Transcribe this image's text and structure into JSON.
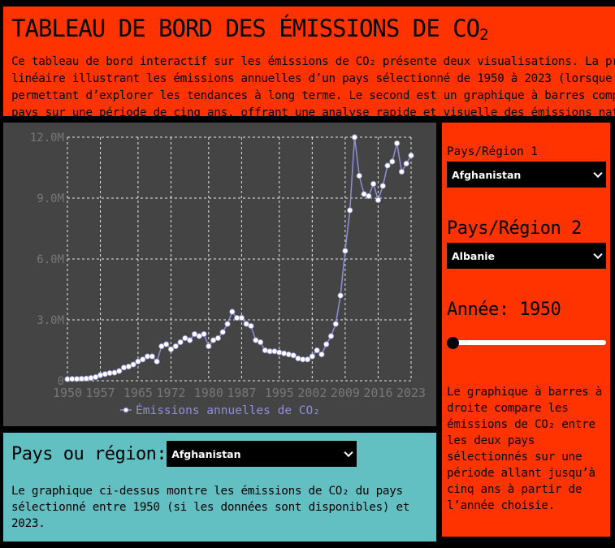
{
  "header": {
    "title_main": "TABLEAU DE BORD DES ÉMISSIONS DE CO",
    "title_sub": "2",
    "desc_lines": [
      "Ce tableau de bord interactif sur les émissions de CO₂ présente deux visualisations. La premi",
      "linéaire illustrant les émissions annuelles d’un pays sélectionné de 1950 à 2023 (lorsque les",
      "permettant d’explorer les tendances à long terme. Le second est un graphique à barres compara",
      "pays sur une période de cinq ans, offrant une analyse rapide et visuelle des émissions nation"
    ]
  },
  "info": {
    "label": "Pays ou région:",
    "selected": "Afghanistan",
    "text": "Le graphique ci-dessus montre les émissions de CO₂ du pays sélectionné entre 1950 (si les données sont disponibles) et 2023."
  },
  "side": {
    "label1": "Pays/Région 1",
    "country1": "Afghanistan",
    "label2": "Pays/Région 2",
    "country2": "Albanie",
    "year_label": "Année: 1950",
    "year_value": 1950,
    "year_range": [
      1950,
      2023
    ],
    "text": "Le graphique à barres à droite compare les émissions de CO₂ entre les deux pays sélectionnés sur une période allant jusqu’à cinq ans à partir de l’année choisie."
  },
  "colors": {
    "accent": "#ff3300",
    "info_bg": "#62c0c3",
    "chart_bg": "#444444",
    "line": "#8f8fd8",
    "marker": "#ffffff"
  },
  "chart_data": {
    "type": "line",
    "legend": "Émissions annuelles de CO₂",
    "legend_placement": "bottom-center",
    "grid": true,
    "xlim": [
      1950,
      2023
    ],
    "ylim": [
      0,
      12000000
    ],
    "x_ticks": [
      1950,
      1957,
      1965,
      1972,
      1980,
      1987,
      1995,
      2002,
      2009,
      2016,
      2023
    ],
    "y_ticks": [
      0,
      3000000,
      6000000,
      9000000,
      12000000
    ],
    "y_tick_labels": [
      "0",
      "3.0M",
      "6.0M",
      "9.0M",
      "12.0M"
    ],
    "series": [
      {
        "x": [
          1950,
          1951,
          1952,
          1953,
          1954,
          1955,
          1956,
          1957,
          1958,
          1959,
          1960,
          1961,
          1962,
          1963,
          1964,
          1965,
          1966,
          1967,
          1968,
          1969,
          1970,
          1971,
          1972,
          1973,
          1974,
          1975,
          1976,
          1977,
          1978,
          1979,
          1980,
          1981,
          1982,
          1983,
          1984,
          1985,
          1986,
          1987,
          1988,
          1989,
          1990,
          1991,
          1992,
          1993,
          1994,
          1995,
          1996,
          1997,
          1998,
          1999,
          2000,
          2001,
          2002,
          2003,
          2004,
          2005,
          2006,
          2007,
          2008,
          2009,
          2010,
          2011,
          2012,
          2013,
          2014,
          2015,
          2016,
          2017,
          2018,
          2019,
          2020,
          2021,
          2022,
          2023
        ],
        "y": [
          80000,
          90000,
          90000,
          100000,
          110000,
          140000,
          180000,
          280000,
          330000,
          380000,
          400000,
          480000,
          650000,
          700000,
          800000,
          950000,
          1050000,
          1200000,
          1200000,
          950000,
          1700000,
          1800000,
          1550000,
          1700000,
          1900000,
          2100000,
          2000000,
          2300000,
          2200000,
          2300000,
          1700000,
          2000000,
          2100000,
          2400000,
          2800000,
          3400000,
          3100000,
          3100000,
          2800000,
          2700000,
          2000000,
          1900000,
          1500000,
          1450000,
          1450000,
          1400000,
          1350000,
          1300000,
          1250000,
          1100000,
          1050000,
          1050000,
          1200000,
          1500000,
          1300000,
          1800000,
          2200000,
          2800000,
          4200000,
          6400000,
          8400000,
          12000000,
          10100000,
          9200000,
          9100000,
          9700000,
          8900000,
          9600000,
          10600000,
          10800000,
          11700000,
          10300000,
          10700000,
          11100000
        ]
      }
    ]
  }
}
